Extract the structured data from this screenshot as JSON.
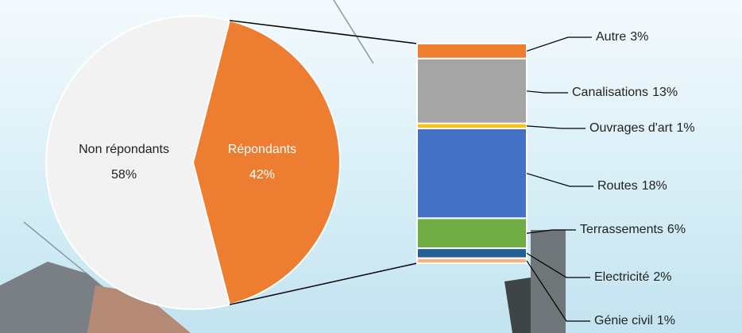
{
  "chart_data": {
    "type": "pie",
    "categories": [
      "Non répondants",
      "Répondants"
    ],
    "values": [
      58,
      42
    ],
    "value_labels": [
      "58%",
      "42%"
    ],
    "colors": [
      "#f2f2f2",
      "#ed7d31"
    ],
    "breakdown": {
      "categories": [
        "Autre",
        "Canalisations",
        "Ouvrages d'art",
        "Routes",
        "Terrassements",
        "Electricité",
        "Génie civil"
      ],
      "values": [
        3,
        13,
        1,
        18,
        6,
        2,
        1
      ],
      "value_labels": [
        "3%",
        "13%",
        "1%",
        "18%",
        "6%",
        "2%",
        "1%"
      ],
      "colors": [
        "#ed7d31",
        "#a5a5a5",
        "#ffc000",
        "#4472c4",
        "#70ad47",
        "#255e91",
        "#f4b183"
      ]
    }
  }
}
